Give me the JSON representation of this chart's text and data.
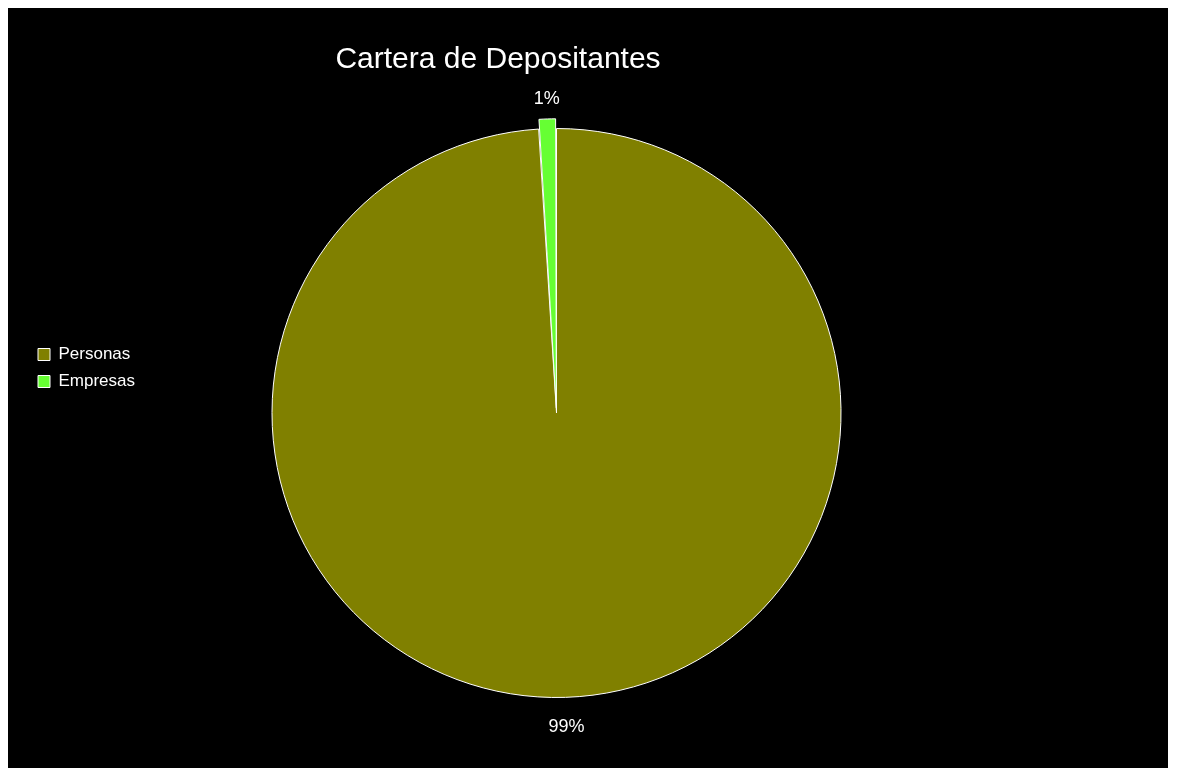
{
  "chart_data": {
    "type": "pie",
    "title": "Cartera de Depositantes",
    "categories": [
      "Personas",
      "Empresas"
    ],
    "values": [
      99,
      1
    ],
    "colors": [
      "#808000",
      "#66ff33"
    ],
    "value_labels": [
      "99%",
      "1%"
    ],
    "legend": "left"
  }
}
